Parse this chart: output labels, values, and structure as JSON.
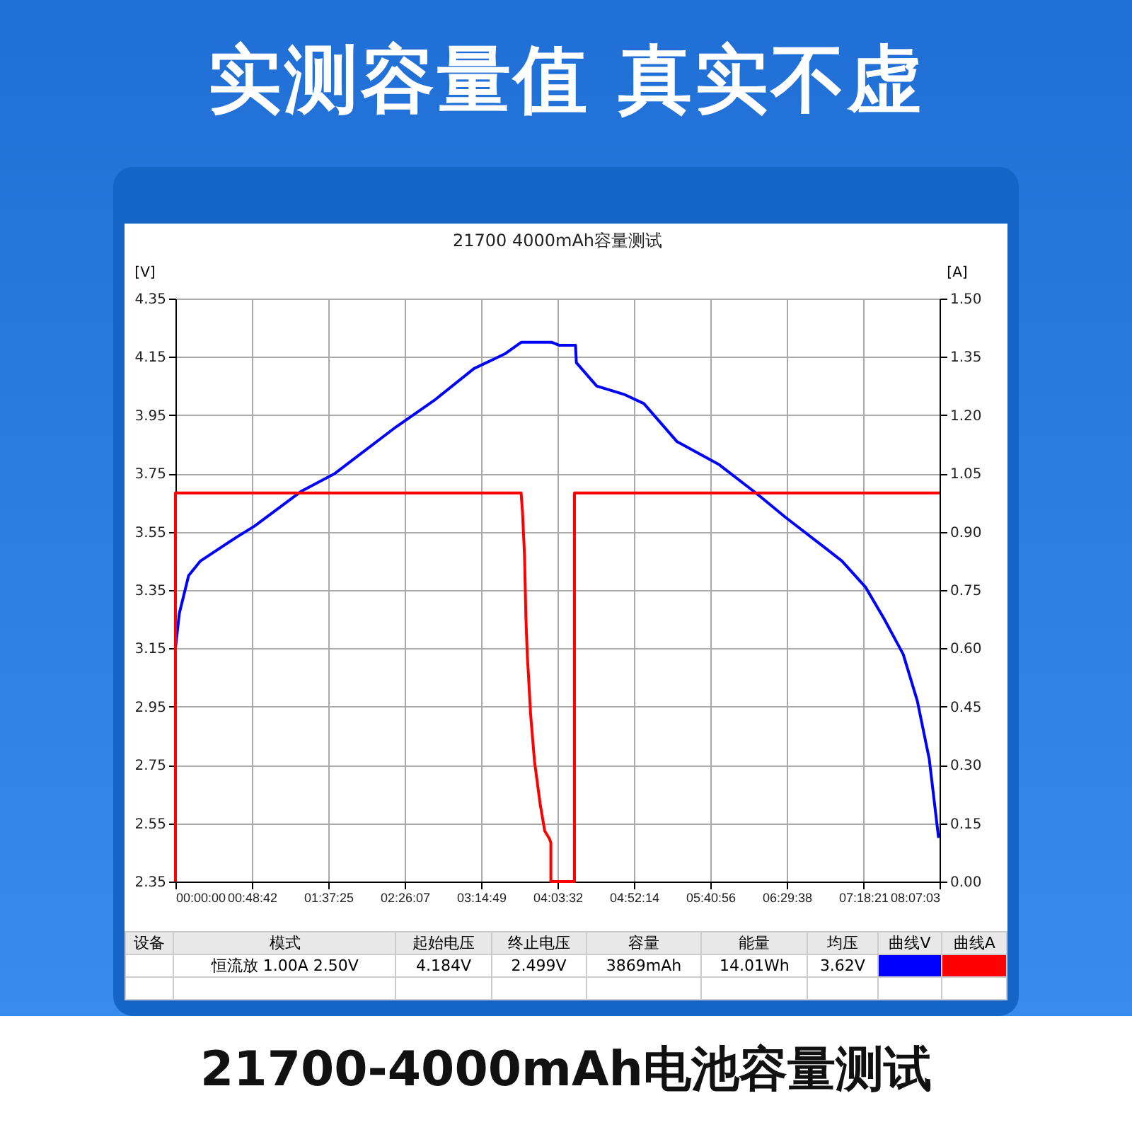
{
  "chart_data": {
    "type": "line",
    "title": "实测容量值 真实不虚",
    "subtitle": "21700 4000mAh容量测试",
    "ylabel": "[V]",
    "y2label": "[A]",
    "xlim": [
      0,
      8.1175
    ],
    "xticks": [
      {
        "value": 0,
        "label": "00:00:00"
      },
      {
        "value": 0.8117,
        "label": "00:48:42"
      },
      {
        "value": 1.6236,
        "label": "01:37:25"
      },
      {
        "value": 2.4353,
        "label": "02:26:07"
      },
      {
        "value": 3.2469,
        "label": "03:14:49"
      },
      {
        "value": 4.0589,
        "label": "04:03:32"
      },
      {
        "value": 4.8706,
        "label": "04:52:14"
      },
      {
        "value": 5.6822,
        "label": "05:40:56"
      },
      {
        "value": 6.4939,
        "label": "06:29:38"
      },
      {
        "value": 7.3058,
        "label": "07:18:21"
      },
      {
        "value": 8.1175,
        "label": "08:07:03"
      }
    ],
    "ylim": [
      2.35,
      4.35
    ],
    "yticks": [
      2.35,
      2.55,
      2.75,
      2.95,
      3.15,
      3.35,
      3.55,
      3.75,
      3.95,
      4.15,
      4.35
    ],
    "y2lim": [
      0,
      1.5
    ],
    "y2ticks": [
      {
        "value": 0,
        "label": "0.00"
      },
      {
        "value": 0.15,
        "label": "0.15"
      },
      {
        "value": 0.3,
        "label": "0.30"
      },
      {
        "value": 0.45,
        "label": "0.45"
      },
      {
        "value": 0.6,
        "label": "0.60"
      },
      {
        "value": 0.75,
        "label": "0.75"
      },
      {
        "value": 0.9,
        "label": "0.90"
      },
      {
        "value": 1.05,
        "label": "1.05"
      },
      {
        "value": 1.2,
        "label": "1.20"
      },
      {
        "value": 1.35,
        "label": "1.35"
      },
      {
        "value": 1.5,
        "label": "1.50"
      }
    ],
    "grid": true,
    "series": [
      {
        "color": "#0000ff",
        "x": [
          0,
          0.041,
          0.14,
          0.266,
          0.642,
          0.842,
          1.342,
          1.694,
          2.345,
          2.746,
          3.172,
          3.498,
          3.672,
          3.999,
          4.074,
          4.25,
          4.259,
          4.475,
          4.776,
          4.976,
          5.326,
          5.777,
          6.178,
          6.479,
          6.88,
          7.08,
          7.331,
          7.531,
          7.731,
          7.881,
          8.008,
          8.107
        ],
        "values": [
          3.15,
          3.27,
          3.4,
          3.45,
          3.53,
          3.57,
          3.69,
          3.75,
          3.91,
          4.0,
          4.11,
          4.16,
          4.2,
          4.2,
          4.19,
          4.19,
          4.13,
          4.05,
          4.02,
          3.99,
          3.86,
          3.78,
          3.68,
          3.6,
          3.5,
          3.45,
          3.36,
          3.25,
          3.13,
          2.97,
          2.77,
          2.5
        ]
      },
      {
        "color": "#ff0000",
        "axis": "y2",
        "x": [
          0,
          0,
          3.672,
          3.687,
          3.708,
          3.723,
          3.738,
          3.748,
          3.773,
          3.814,
          3.874,
          3.923,
          3.973,
          3.988,
          3.988,
          4.239,
          4.239,
          8.117
        ],
        "values": [
          0,
          1.0,
          1.0,
          0.95,
          0.84,
          0.68,
          0.58,
          0.54,
          0.43,
          0.31,
          0.2,
          0.13,
          0.11,
          0.1,
          0,
          0,
          1.0,
          1.0
        ]
      }
    ],
    "annotations": [
      "设备",
      "模式",
      "起始电压",
      "终止电压",
      "容量",
      "能量",
      "均压",
      "曲线V",
      "曲线A",
      "恒流放  1.00A  2.50V",
      "4.184V",
      "2.499V",
      "3869mAh",
      "14.01Wh",
      "3.62V",
      "21700-4000mAh电池容量测试"
    ]
  }
}
